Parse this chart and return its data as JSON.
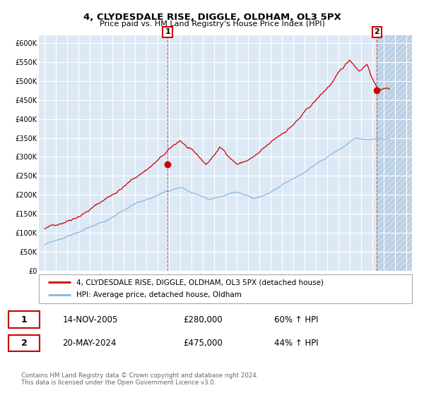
{
  "title": "4, CLYDESDALE RISE, DIGGLE, OLDHAM, OL3 5PX",
  "subtitle": "Price paid vs. HM Land Registry's House Price Index (HPI)",
  "ylim": [
    0,
    620000
  ],
  "yticks": [
    0,
    50000,
    100000,
    150000,
    200000,
    250000,
    300000,
    350000,
    400000,
    450000,
    500000,
    550000,
    600000
  ],
  "ytick_labels": [
    "£0",
    "£50K",
    "£100K",
    "£150K",
    "£200K",
    "£250K",
    "£300K",
    "£350K",
    "£400K",
    "£450K",
    "£500K",
    "£550K",
    "£600K"
  ],
  "xlim_start": 1994.5,
  "xlim_end": 2027.5,
  "xticks": [
    1995,
    1996,
    1997,
    1998,
    1999,
    2000,
    2001,
    2002,
    2003,
    2004,
    2005,
    2006,
    2007,
    2008,
    2009,
    2010,
    2011,
    2012,
    2013,
    2014,
    2015,
    2016,
    2017,
    2018,
    2019,
    2020,
    2021,
    2022,
    2023,
    2024,
    2025,
    2026,
    2027
  ],
  "bg_color": "#dce9f5",
  "hatch_color": "#c5d8ea",
  "grid_color": "#ffffff",
  "red_line_color": "#cc0000",
  "blue_line_color": "#88b8e0",
  "marker_color": "#cc0000",
  "sale1_x": 2005.87,
  "sale1_y": 280000,
  "sale2_x": 2024.38,
  "sale2_y": 475000,
  "vline1_x": 2005.87,
  "vline2_x": 2024.38,
  "legend_line1": "4, CLYDESDALE RISE, DIGGLE, OLDHAM, OL3 5PX (detached house)",
  "legend_line2": "HPI: Average price, detached house, Oldham",
  "annot1_label": "1",
  "annot2_label": "2",
  "annot1_date": "14-NOV-2005",
  "annot1_price": "£280,000",
  "annot1_hpi": "60% ↑ HPI",
  "annot2_date": "20-MAY-2024",
  "annot2_price": "£475,000",
  "annot2_hpi": "44% ↑ HPI",
  "footer1": "Contains HM Land Registry data © Crown copyright and database right 2024.",
  "footer2": "This data is licensed under the Open Government Licence v3.0."
}
